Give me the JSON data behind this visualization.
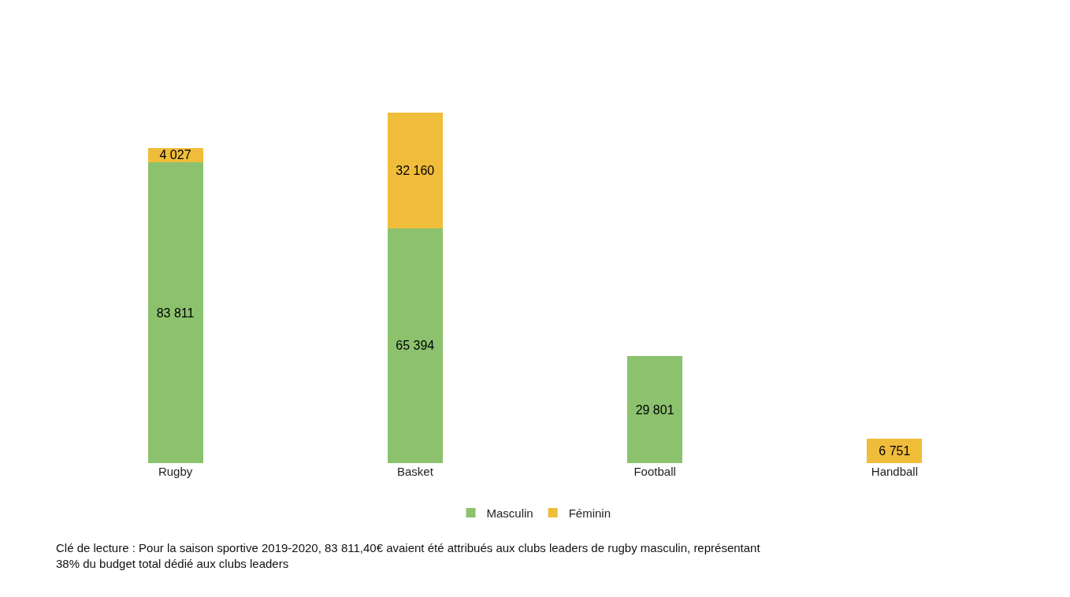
{
  "chart_data": {
    "type": "bar",
    "stacked": true,
    "data_labels": true,
    "legend": "bottom",
    "categories": [
      "Rugby",
      "Basket",
      "Football",
      "Handball"
    ],
    "series": [
      {
        "name": "Masculin",
        "color": "#8cc26e",
        "values": [
          83811,
          65394,
          29801,
          null
        ]
      },
      {
        "name": "Féminin",
        "color": "#f0bd3b",
        "values": [
          4027,
          32160,
          null,
          6751
        ]
      }
    ],
    "annotations": [
      "Clé de lecture : Pour la saison sportive 2019-2020, 83 811,40€ avaient été attribués aux clubs leaders de rugby masculin, représentant 38% du budget total dédié aux clubs leaders"
    ]
  }
}
